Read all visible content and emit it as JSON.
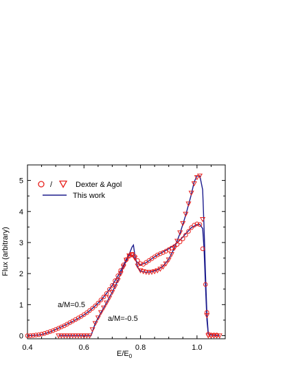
{
  "chart_data": {
    "type": "line",
    "title": "",
    "xlabel": "E/E",
    "xlabel_sub": "0",
    "ylabel": "Flux (arbitrary)",
    "xlim": [
      0.4,
      1.1
    ],
    "ylim": [
      -0.1,
      5.5
    ],
    "xticks": [
      0.4,
      0.6,
      0.8,
      1.0
    ],
    "yticks": [
      0,
      1,
      2,
      3,
      4,
      5
    ],
    "grid": false,
    "legend": {
      "placement": "top-left",
      "marker_separator": "/",
      "entries": [
        {
          "label": "Dexter & Agol",
          "markers": [
            "circle",
            "triangle-down"
          ],
          "color": "#e8201c"
        },
        {
          "label": "This work",
          "line": true,
          "color": "#1a1a8c"
        }
      ]
    },
    "annotations": [
      {
        "text": "a/M=0.5",
        "x": 0.555,
        "y": 1.0
      },
      {
        "text": "a/M=-0.5",
        "x": 0.71,
        "y": 0.48
      }
    ],
    "series": [
      {
        "curve": "a/M=0.5",
        "kind": "line",
        "color": "#1a1a8c",
        "x": [
          0.4,
          0.44,
          0.46,
          0.48,
          0.5,
          0.52,
          0.54,
          0.56,
          0.58,
          0.6,
          0.62,
          0.64,
          0.66,
          0.68,
          0.7,
          0.72,
          0.74,
          0.755,
          0.765,
          0.775,
          0.785,
          0.8,
          0.82,
          0.84,
          0.86,
          0.88,
          0.9,
          0.92,
          0.94,
          0.96,
          0.98,
          1.0,
          1.01,
          1.02,
          1.025,
          1.03,
          1.035,
          1.04,
          1.05,
          1.08
        ],
        "y": [
          0.0,
          0.02,
          0.06,
          0.12,
          0.2,
          0.28,
          0.37,
          0.46,
          0.56,
          0.67,
          0.8,
          0.96,
          1.14,
          1.36,
          1.62,
          1.92,
          2.28,
          2.55,
          2.62,
          2.55,
          2.4,
          2.28,
          2.35,
          2.48,
          2.6,
          2.7,
          2.8,
          2.92,
          3.08,
          3.28,
          3.48,
          3.58,
          3.58,
          3.45,
          2.8,
          1.6,
          0.5,
          0.05,
          0.02,
          0.0
        ]
      },
      {
        "curve": "a/M=-0.5",
        "kind": "line",
        "color": "#1a1a8c",
        "x": [
          0.51,
          0.6,
          0.625,
          0.64,
          0.66,
          0.68,
          0.7,
          0.72,
          0.74,
          0.76,
          0.77,
          0.775,
          0.78,
          0.79,
          0.8,
          0.82,
          0.84,
          0.86,
          0.88,
          0.9,
          0.92,
          0.94,
          0.96,
          0.98,
          0.99,
          1.0,
          1.01,
          1.02,
          1.025,
          1.03,
          1.035,
          1.04,
          1.05,
          1.08
        ],
        "y": [
          0.0,
          0.0,
          0.0,
          0.4,
          0.74,
          1.06,
          1.4,
          1.78,
          2.22,
          2.62,
          2.85,
          2.92,
          2.6,
          2.2,
          2.08,
          2.04,
          2.06,
          2.12,
          2.24,
          2.46,
          2.82,
          3.3,
          3.88,
          4.55,
          4.95,
          5.15,
          5.15,
          4.7,
          3.5,
          2.0,
          0.7,
          0.05,
          0.02,
          0.0
        ]
      },
      {
        "curve": "a/M=0.5",
        "kind": "markers",
        "marker": "circle",
        "color": "#e8201c",
        "x": [
          0.4,
          0.41,
          0.42,
          0.43,
          0.44,
          0.45,
          0.46,
          0.47,
          0.48,
          0.49,
          0.5,
          0.51,
          0.52,
          0.53,
          0.54,
          0.55,
          0.56,
          0.57,
          0.58,
          0.59,
          0.6,
          0.61,
          0.62,
          0.63,
          0.64,
          0.65,
          0.66,
          0.67,
          0.68,
          0.69,
          0.7,
          0.71,
          0.72,
          0.73,
          0.74,
          0.75,
          0.76,
          0.77,
          0.78,
          0.79,
          0.8,
          0.81,
          0.82,
          0.83,
          0.84,
          0.85,
          0.86,
          0.87,
          0.88,
          0.89,
          0.9,
          0.91,
          0.92,
          0.93,
          0.94,
          0.95,
          0.96,
          0.97,
          0.98,
          0.99,
          1.0,
          1.01,
          1.02,
          1.03,
          1.035,
          1.04,
          1.05,
          1.06,
          1.07
        ],
        "y": [
          0.0,
          0.0,
          0.01,
          0.02,
          0.03,
          0.05,
          0.07,
          0.1,
          0.13,
          0.16,
          0.2,
          0.24,
          0.28,
          0.32,
          0.37,
          0.42,
          0.47,
          0.52,
          0.57,
          0.62,
          0.68,
          0.74,
          0.81,
          0.88,
          0.96,
          1.05,
          1.15,
          1.25,
          1.36,
          1.49,
          1.62,
          1.77,
          1.93,
          2.1,
          2.28,
          2.45,
          2.56,
          2.6,
          2.55,
          2.42,
          2.32,
          2.3,
          2.36,
          2.42,
          2.48,
          2.54,
          2.6,
          2.64,
          2.68,
          2.72,
          2.77,
          2.82,
          2.87,
          2.94,
          3.02,
          3.12,
          3.24,
          3.36,
          3.48,
          3.56,
          3.6,
          3.58,
          2.8,
          1.65,
          0.75,
          0.05,
          0.02,
          0.02,
          0.02
        ]
      },
      {
        "curve": "a/M=-0.5",
        "kind": "markers",
        "marker": "triangle-down",
        "color": "#e8201c",
        "x": [
          0.51,
          0.52,
          0.53,
          0.54,
          0.55,
          0.56,
          0.57,
          0.58,
          0.59,
          0.6,
          0.61,
          0.62,
          0.63,
          0.64,
          0.65,
          0.66,
          0.67,
          0.68,
          0.69,
          0.7,
          0.71,
          0.72,
          0.73,
          0.74,
          0.75,
          0.76,
          0.77,
          0.78,
          0.79,
          0.8,
          0.81,
          0.82,
          0.83,
          0.84,
          0.85,
          0.86,
          0.87,
          0.88,
          0.89,
          0.9,
          0.91,
          0.92,
          0.93,
          0.94,
          0.95,
          0.96,
          0.97,
          0.98,
          0.99,
          1.0,
          1.01,
          1.02,
          1.035,
          1.04,
          1.05,
          1.06,
          1.07,
          1.08
        ],
        "y": [
          0.0,
          0.0,
          0.0,
          0.0,
          0.0,
          0.0,
          0.0,
          0.0,
          0.0,
          0.0,
          0.0,
          0.0,
          0.2,
          0.4,
          0.58,
          0.75,
          0.9,
          1.06,
          1.22,
          1.4,
          1.58,
          1.78,
          2.0,
          2.22,
          2.44,
          2.58,
          2.62,
          2.5,
          2.25,
          2.1,
          2.07,
          2.05,
          2.04,
          2.05,
          2.07,
          2.1,
          2.15,
          2.22,
          2.32,
          2.45,
          2.62,
          2.82,
          3.05,
          3.32,
          3.62,
          3.92,
          4.25,
          4.6,
          4.9,
          5.1,
          5.15,
          3.75,
          0.65,
          0.0,
          0.0,
          0.0,
          0.0,
          0.0
        ]
      }
    ]
  }
}
